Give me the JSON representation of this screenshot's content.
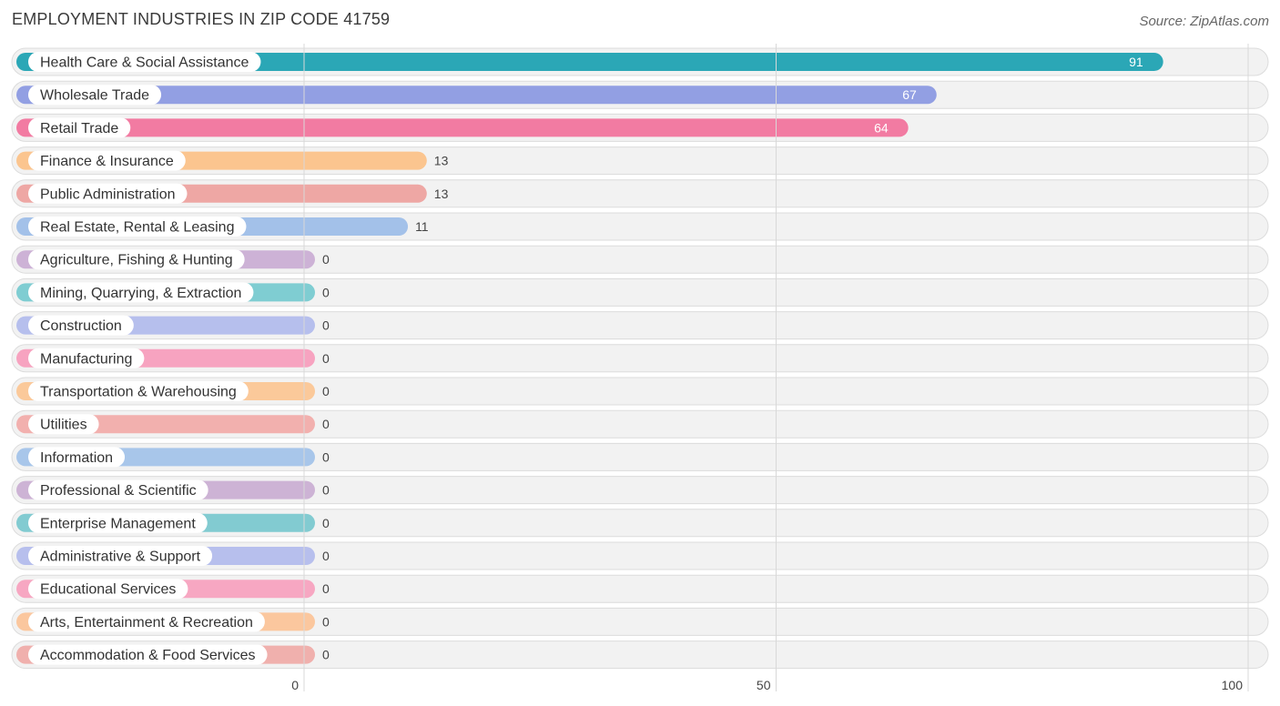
{
  "chart_data": {
    "type": "bar",
    "orientation": "horizontal",
    "title": "EMPLOYMENT INDUSTRIES IN ZIP CODE 41759",
    "source": "Source: ZipAtlas.com",
    "xlim": [
      0,
      100
    ],
    "xticks": [
      {
        "value": 0,
        "label": "0"
      },
      {
        "value": 50,
        "label": "50"
      },
      {
        "value": 100,
        "label": "100"
      }
    ],
    "grid": true,
    "categories": [
      "Health Care & Social Assistance",
      "Wholesale Trade",
      "Retail Trade",
      "Finance & Insurance",
      "Public Administration",
      "Real Estate, Rental & Leasing",
      "Agriculture, Fishing & Hunting",
      "Mining, Quarrying, & Extraction",
      "Construction",
      "Manufacturing",
      "Transportation & Warehousing",
      "Utilities",
      "Information",
      "Professional & Scientific",
      "Enterprise Management",
      "Administrative & Support",
      "Educational Services",
      "Arts, Entertainment & Recreation",
      "Accommodation & Food Services"
    ],
    "values": [
      91,
      67,
      64,
      13,
      13,
      11,
      0,
      0,
      0,
      0,
      0,
      0,
      0,
      0,
      0,
      0,
      0,
      0,
      0
    ],
    "value_labels": [
      "91",
      "67",
      "64",
      "13",
      "13",
      "11",
      "0",
      "0",
      "0",
      "0",
      "0",
      "0",
      "0",
      "0",
      "0",
      "0",
      "0",
      "0",
      "0"
    ],
    "colors": [
      "#2ba7b6",
      "#929fe3",
      "#f27ba2",
      "#fbc58f",
      "#eea7a4",
      "#a3c1e9",
      "#cdb2d6",
      "#7fcdd2",
      "#b6bfed",
      "#f7a3c0",
      "#fbc99a",
      "#f2b0ae",
      "#a8c6ea",
      "#cdb3d5",
      "#82cbd1",
      "#b7bfed",
      "#f7a7c2",
      "#fbc79e",
      "#f0b0ad"
    ]
  }
}
